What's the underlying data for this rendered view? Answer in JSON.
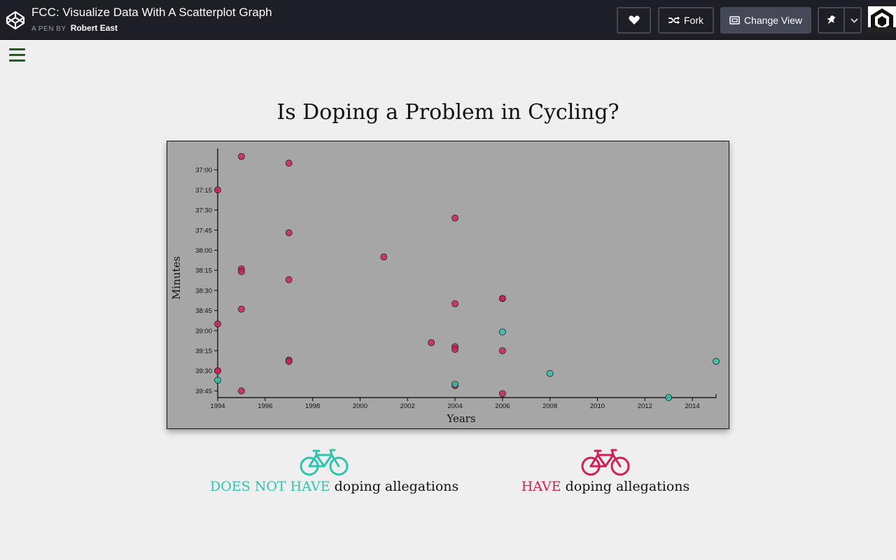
{
  "header": {
    "pen_title": "FCC: Visualize Data With A Scatterplot Graph",
    "by_label": "A PEN BY",
    "author": "Robert East",
    "fork_label": "Fork",
    "change_view_label": "Change View"
  },
  "page": {
    "title": "Is Doping a Problem in Cycling?"
  },
  "legend": {
    "clean_highlight": "DOES NOT HAVE",
    "clean_rest": " doping allegations",
    "doped_highlight": "HAVE",
    "doped_rest": " doping allegations"
  },
  "colors": {
    "clean": "#2ec4b0",
    "doped": "#d11f55",
    "plot_bg": "#a6a6a6"
  },
  "chart_data": {
    "type": "scatter",
    "xlabel": "Years",
    "ylabel": "Minutes",
    "xlim": [
      1994,
      2015
    ],
    "ylim_seconds": [
      2204,
      2390
    ],
    "x_ticks": [
      1994,
      1996,
      1998,
      2000,
      2002,
      2004,
      2006,
      2008,
      2010,
      2012,
      2014
    ],
    "y_ticks": [
      "37:00",
      "37:15",
      "37:30",
      "37:45",
      "38:00",
      "38:15",
      "38:30",
      "38:45",
      "39:00",
      "39:15",
      "39:30",
      "39:45"
    ],
    "grid": false,
    "series": [
      {
        "name": "HAVE doping allegations",
        "color": "#d11f55",
        "points": [
          {
            "x": 1995,
            "y": "36:50"
          },
          {
            "x": 1997,
            "y": "36:55"
          },
          {
            "x": 1994,
            "y": "37:15"
          },
          {
            "x": 1997,
            "y": "37:47"
          },
          {
            "x": 2004,
            "y": "37:36"
          },
          {
            "x": 2001,
            "y": "38:05"
          },
          {
            "x": 1995,
            "y": "38:14"
          },
          {
            "x": 1995,
            "y": "38:16"
          },
          {
            "x": 1997,
            "y": "38:22"
          },
          {
            "x": 2006,
            "y": "38:36"
          },
          {
            "x": 2006,
            "y": "38:36"
          },
          {
            "x": 2004,
            "y": "38:40"
          },
          {
            "x": 1995,
            "y": "38:44"
          },
          {
            "x": 1994,
            "y": "38:55"
          },
          {
            "x": 2003,
            "y": "39:09"
          },
          {
            "x": 2004,
            "y": "39:12"
          },
          {
            "x": 2004,
            "y": "39:14"
          },
          {
            "x": 2006,
            "y": "39:15"
          },
          {
            "x": 1997,
            "y": "39:22"
          },
          {
            "x": 1997,
            "y": "39:23"
          },
          {
            "x": 1994,
            "y": "39:30"
          },
          {
            "x": 1994,
            "y": "39:30"
          },
          {
            "x": 2004,
            "y": "39:41"
          },
          {
            "x": 1995,
            "y": "39:45"
          },
          {
            "x": 2006,
            "y": "39:47"
          }
        ]
      },
      {
        "name": "DOES NOT HAVE doping allegations",
        "color": "#2ec4b0",
        "points": [
          {
            "x": 2006,
            "y": "39:01"
          },
          {
            "x": 2015,
            "y": "39:23"
          },
          {
            "x": 2008,
            "y": "39:32"
          },
          {
            "x": 1994,
            "y": "39:37"
          },
          {
            "x": 2004,
            "y": "39:40"
          },
          {
            "x": 2013,
            "y": "39:50"
          }
        ]
      }
    ]
  }
}
